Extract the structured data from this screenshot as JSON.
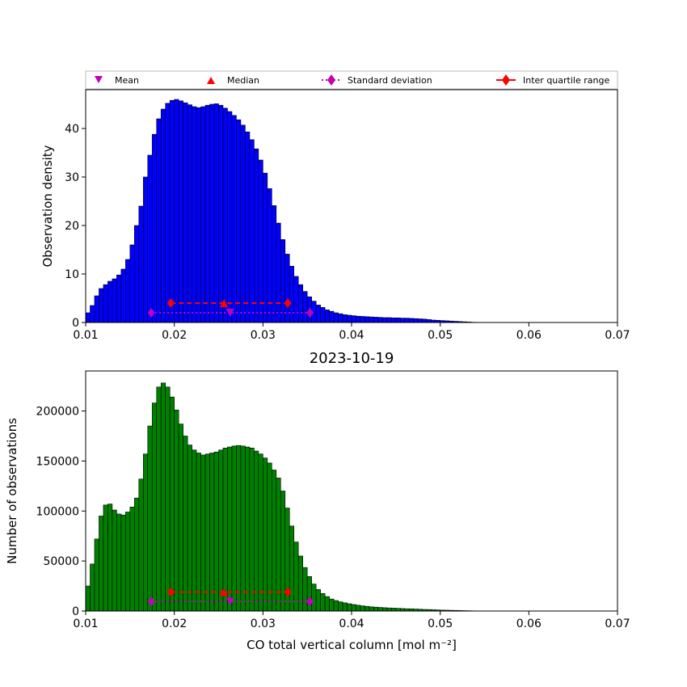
{
  "chart_data": [
    {
      "type": "bar",
      "title": "",
      "xlabel": "",
      "ylabel": "Observation density",
      "xlim": [
        0.01,
        0.07
      ],
      "ylim": [
        0,
        48
      ],
      "xticks": [
        "0.01",
        "0.02",
        "0.03",
        "0.04",
        "0.05",
        "0.06",
        "0.07"
      ],
      "yticks": [
        "0",
        "10",
        "20",
        "30",
        "40"
      ],
      "bar_color": "#0000ff",
      "bin_start": 0.01,
      "bin_width": 0.0005,
      "values": [
        2.0,
        3.5,
        5.5,
        7.0,
        7.8,
        8.5,
        9.0,
        9.8,
        11.0,
        13.0,
        16.0,
        20.0,
        24.0,
        30.0,
        34.5,
        38.8,
        42.0,
        44.0,
        45.2,
        45.8,
        46.0,
        45.7,
        45.3,
        44.9,
        44.5,
        44.3,
        44.5,
        44.8,
        45.0,
        45.1,
        44.8,
        44.2,
        43.5,
        42.7,
        41.8,
        40.7,
        39.3,
        37.7,
        35.8,
        33.5,
        30.8,
        27.6,
        24.1,
        20.5,
        17.1,
        14.1,
        11.6,
        9.5,
        7.8,
        6.4,
        5.3,
        4.4,
        3.6,
        3.1,
        2.6,
        2.3,
        2.0,
        1.8,
        1.6,
        1.5,
        1.4,
        1.3,
        1.25,
        1.2,
        1.15,
        1.1,
        1.05,
        1.0,
        1.0,
        0.95,
        0.95,
        0.9,
        0.9,
        0.85,
        0.8,
        0.75,
        0.7,
        0.6,
        0.5,
        0.45,
        0.4,
        0.35,
        0.3,
        0.25,
        0.2,
        0.15,
        0.1,
        0.05,
        0.02,
        0.0
      ],
      "stats": {
        "mean": 0.0263,
        "median": 0.0256,
        "std_range": [
          0.0174,
          0.0353
        ],
        "iqr_range": [
          0.0196,
          0.0328
        ],
        "std_y": 2.0,
        "iqr_y": 4.0
      }
    },
    {
      "type": "bar",
      "title": "2023-10-19",
      "xlabel": "CO total vertical column [mol m⁻²]",
      "ylabel": "Number of observations",
      "xlim": [
        0.01,
        0.07
      ],
      "ylim": [
        0,
        240000
      ],
      "xticks": [
        "0.01",
        "0.02",
        "0.03",
        "0.04",
        "0.05",
        "0.06",
        "0.07"
      ],
      "yticks": [
        "0",
        "50000",
        "100000",
        "150000",
        "200000"
      ],
      "bar_color": "#008000",
      "bin_start": 0.01,
      "bin_width": 0.0005,
      "values": [
        25000,
        47000,
        72000,
        95000,
        106000,
        107000,
        101000,
        97000,
        96000,
        99000,
        104000,
        113000,
        132000,
        157000,
        185000,
        208000,
        224000,
        228000,
        224000,
        214000,
        201000,
        187000,
        175000,
        166000,
        161000,
        158000,
        156000,
        157000,
        158000,
        159000,
        161000,
        163000,
        164000,
        165000,
        165500,
        165000,
        164000,
        163000,
        160000,
        157000,
        153000,
        148000,
        141000,
        133000,
        120000,
        103000,
        85000,
        69000,
        55000,
        43500,
        34500,
        27000,
        21500,
        17500,
        14500,
        12000,
        10500,
        9200,
        8200,
        7300,
        6500,
        5800,
        5200,
        4700,
        4200,
        3900,
        3600,
        3300,
        3100,
        2900,
        2700,
        2500,
        2300,
        2200,
        2000,
        1800,
        1600,
        1500,
        1300,
        1100,
        900,
        800,
        700,
        600,
        500,
        400,
        300,
        200,
        100,
        50
      ],
      "stats": {
        "mean": 0.0263,
        "median": 0.0256,
        "std_range": [
          0.0174,
          0.0353
        ],
        "iqr_range": [
          0.0196,
          0.0328
        ],
        "std_y": 9500,
        "iqr_y": 19000
      }
    }
  ],
  "legend": {
    "placement": "top",
    "items": [
      {
        "label": "Mean",
        "marker": "triangle-down",
        "color": "#bf00bf"
      },
      {
        "label": "Median",
        "marker": "triangle-up",
        "color": "#ff0000"
      },
      {
        "label": "Standard deviation",
        "marker": "diamond-dotted",
        "color": "#bf00bf"
      },
      {
        "label": "Inter quartile range",
        "marker": "diamond-line",
        "color": "#ff0000"
      }
    ]
  }
}
